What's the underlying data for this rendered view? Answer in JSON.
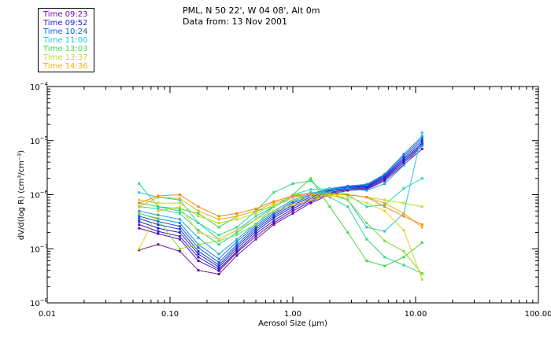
{
  "header": {
    "line1": "PML, N 50 22', W 04 08', Alt 0m",
    "line2": "Data from: 13 Nov 2001"
  },
  "chart_data": {
    "type": "line",
    "x_scale": "log",
    "y_scale": "log",
    "xlim": [
      0.01,
      100
    ],
    "ylim": [
      1e-08,
      0.0001
    ],
    "xlabel_pre": "Aerosol Size (",
    "xlabel_mu": "μ",
    "xlabel_post": "m)",
    "ylabel": "dV/d(log R)  (cm³/cm⁻³)",
    "x_ticks": [
      {
        "value": 0.01,
        "label": "0.01"
      },
      {
        "value": 0.1,
        "label": "0.10"
      },
      {
        "value": 1,
        "label": "1.00"
      },
      {
        "value": 10,
        "label": "10.00"
      },
      {
        "value": 100,
        "label": "100.00"
      }
    ],
    "y_ticks": [
      {
        "value": 1e-08,
        "base": "10",
        "exp": "−8"
      },
      {
        "value": 1e-07,
        "base": "10",
        "exp": "−7"
      },
      {
        "value": 1e-06,
        "base": "10",
        "exp": "−6"
      },
      {
        "value": 1e-05,
        "base": "10",
        "exp": "−5"
      },
      {
        "value": 0.0001,
        "base": "10",
        "exp": "−4"
      }
    ],
    "x": [
      0.056,
      0.08,
      0.12,
      0.17,
      0.25,
      0.35,
      0.5,
      0.7,
      1.0,
      1.4,
      2.0,
      2.8,
      4.0,
      5.6,
      8.0,
      11.3
    ],
    "series": [
      {
        "name": "Time 09:23",
        "color": "#6a0fa0",
        "values": [
          9.5e-08,
          1.2e-07,
          9e-08,
          4e-08,
          3.4e-08,
          7.5e-08,
          1.5e-07,
          2.8e-07,
          4.5e-07,
          7e-07,
          1e-06,
          1.2e-06,
          1.25e-06,
          1.8e-06,
          3.6e-06,
          7e-06
        ]
      },
      {
        "name": "",
        "color": "#5010b4",
        "values": [
          2.4e-07,
          1.9e-07,
          1.5e-07,
          6e-08,
          3.9e-08,
          8.5e-08,
          1.7e-07,
          3e-07,
          5e-07,
          7.5e-07,
          1.05e-06,
          1.25e-06,
          1.3e-06,
          1.9e-06,
          3.9e-06,
          8e-06
        ]
      },
      {
        "name": "",
        "color": "#3a18c2",
        "values": [
          2.8e-07,
          2.1e-07,
          1.7e-07,
          7e-08,
          4.2e-08,
          9e-08,
          1.9e-07,
          3.3e-07,
          5.5e-07,
          8e-07,
          1.1e-06,
          1.3e-06,
          1.35e-06,
          2e-06,
          4.2e-06,
          8.5e-06
        ]
      },
      {
        "name": "Time 09:52",
        "color": "#2020cc",
        "values": [
          3.2e-07,
          2.4e-07,
          2e-07,
          8e-08,
          4.6e-08,
          1e-07,
          2.1e-07,
          3.7e-07,
          6e-07,
          8.5e-07,
          1.15e-06,
          1.35e-06,
          1.4e-06,
          2.1e-06,
          4.5e-06,
          9e-06
        ]
      },
      {
        "name": "",
        "color": "#1838d8",
        "values": [
          3.6e-07,
          2.8e-07,
          2.3e-07,
          9e-08,
          5e-08,
          1.1e-07,
          2.3e-07,
          4e-07,
          6.5e-07,
          9e-07,
          1.2e-06,
          1.38e-06,
          1.45e-06,
          2.2e-06,
          4.8e-06,
          1e-05
        ]
      },
      {
        "name": "Time 10:24",
        "color": "#1058e0",
        "values": [
          4e-07,
          3.2e-07,
          2.6e-07,
          1.05e-07,
          5.6e-08,
          1.2e-07,
          2.5e-07,
          4.3e-07,
          7e-07,
          9.5e-07,
          1.25e-06,
          1.4e-06,
          1.5e-06,
          2.3e-06,
          5.2e-06,
          1.1e-05
        ]
      },
      {
        "name": "",
        "color": "#1480e0",
        "values": [
          4.5e-07,
          3.6e-07,
          3e-07,
          1.2e-07,
          6.5e-08,
          1.35e-07,
          2.7e-07,
          4.6e-07,
          7.5e-07,
          1e-06,
          1.3e-06,
          1.45e-06,
          1.55e-06,
          2.4e-06,
          5.6e-06,
          1.2e-05
        ]
      },
      {
        "name": "",
        "color": "#18a8dc",
        "values": [
          5e-07,
          4.2e-07,
          3.5e-07,
          1.6e-07,
          8e-08,
          1.5e-07,
          2.9e-07,
          5e-07,
          8e-07,
          1.05e-06,
          1.3e-06,
          1.3e-06,
          1.2e-06,
          1.6e-06,
          3.5e-06,
          8e-06
        ]
      },
      {
        "name": "Time 11:00",
        "color": "#20c8d8",
        "values": [
          1.1e-06,
          9e-07,
          8e-07,
          3e-07,
          1.5e-07,
          2.2e-07,
          4e-07,
          6e-07,
          9e-07,
          1.1e-06,
          1.1e-06,
          8e-07,
          2.5e-07,
          2.1e-07,
          4.5e-07,
          1.4e-05
        ]
      },
      {
        "name": "",
        "color": "#28d6b0",
        "values": [
          6e-07,
          5.5e-07,
          4.5e-07,
          2.2e-07,
          1.2e-07,
          2e-07,
          3.5e-07,
          6e-07,
          1e-06,
          1.25e-06,
          1.3e-06,
          1e-06,
          6e-07,
          6.5e-07,
          1.3e-06,
          2e-06
        ]
      },
      {
        "name": "",
        "color": "#30d880",
        "values": [
          1.6e-06,
          6e-07,
          5e-07,
          3e-07,
          1.8e-07,
          2.5e-07,
          5e-07,
          1.1e-06,
          1.6e-06,
          1.8e-06,
          9e-07,
          6e-07,
          1.5e-07,
          7e-08,
          5e-08,
          3.5e-08
        ]
      },
      {
        "name": "Time 13:03",
        "color": "#40d840",
        "values": [
          7e-07,
          6e-07,
          5.5e-07,
          4.5e-07,
          2.5e-07,
          4e-07,
          5e-07,
          6e-07,
          1e-06,
          2e-06,
          6e-07,
          2e-07,
          6e-08,
          4.8e-08,
          7e-08,
          1.3e-07
        ]
      },
      {
        "name": "",
        "color": "#80dc30",
        "values": [
          4.5e-07,
          3.5e-07,
          1e-07,
          1.2e-07,
          1.4e-07,
          1.8e-07,
          2.8e-07,
          6e-07,
          1e-06,
          1.05e-06,
          1e-06,
          8e-07,
          3e-07,
          1.4e-07,
          9e-08,
          3.4e-08
        ]
      },
      {
        "name": "Time 13:37",
        "color": "#c0dc30",
        "values": [
          8e-07,
          7e-07,
          7e-07,
          4e-07,
          3e-07,
          3.5e-07,
          4.5e-07,
          6.5e-07,
          8e-07,
          9e-07,
          1e-06,
          1e-06,
          9e-07,
          8e-07,
          7e-07,
          6e-07
        ]
      },
      {
        "name": "",
        "color": "#e8d020",
        "values": [
          1e-07,
          5e-07,
          6e-07,
          2e-07,
          1.5e-07,
          2.2e-07,
          3.5e-07,
          5e-07,
          6.5e-07,
          8e-07,
          9.5e-07,
          9e-07,
          7e-07,
          5e-07,
          2.2e-07,
          2.7e-08
        ]
      },
      {
        "name": "Time 14:36",
        "color": "#f0b010",
        "values": [
          6e-07,
          9e-07,
          8.5e-07,
          5e-07,
          3.5e-07,
          4e-07,
          5e-07,
          7e-07,
          9e-07,
          1e-06,
          1.05e-06,
          1e-06,
          9e-07,
          7e-07,
          4.5e-07,
          2.5e-07
        ]
      },
      {
        "name": "",
        "color": "#f08820",
        "values": [
          7e-07,
          9.5e-07,
          1e-06,
          6e-07,
          4e-07,
          4.5e-07,
          5.5e-07,
          7.5e-07,
          9.5e-07,
          1.05e-06,
          1.05e-06,
          1e-06,
          9e-07,
          6e-07,
          4e-07,
          2.8e-07
        ]
      }
    ]
  }
}
